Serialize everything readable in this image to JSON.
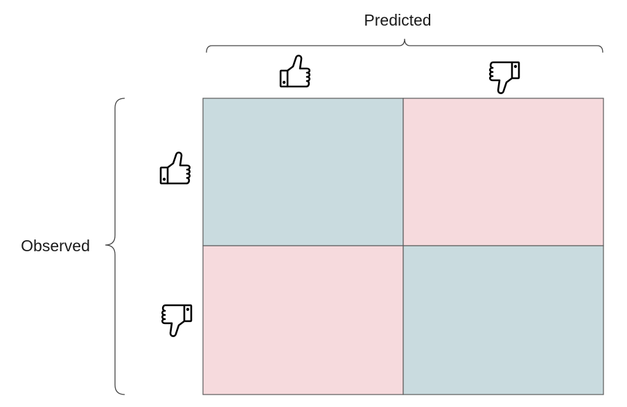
{
  "header": {
    "predicted_label": "Predicted"
  },
  "side": {
    "observed_label": "Observed"
  },
  "colors": {
    "match": "#c9dbdf",
    "mismatch": "#f6dadd",
    "grid_line": "#595959"
  },
  "icons": {
    "positive": "thumbs-up-icon",
    "negative": "thumbs-down-icon"
  },
  "matrix": {
    "columns": [
      "thumbs-up-icon",
      "thumbs-down-icon"
    ],
    "rows": [
      "thumbs-up-icon",
      "thumbs-down-icon"
    ],
    "cells": [
      [
        "match",
        "mismatch"
      ],
      [
        "mismatch",
        "match"
      ]
    ]
  }
}
